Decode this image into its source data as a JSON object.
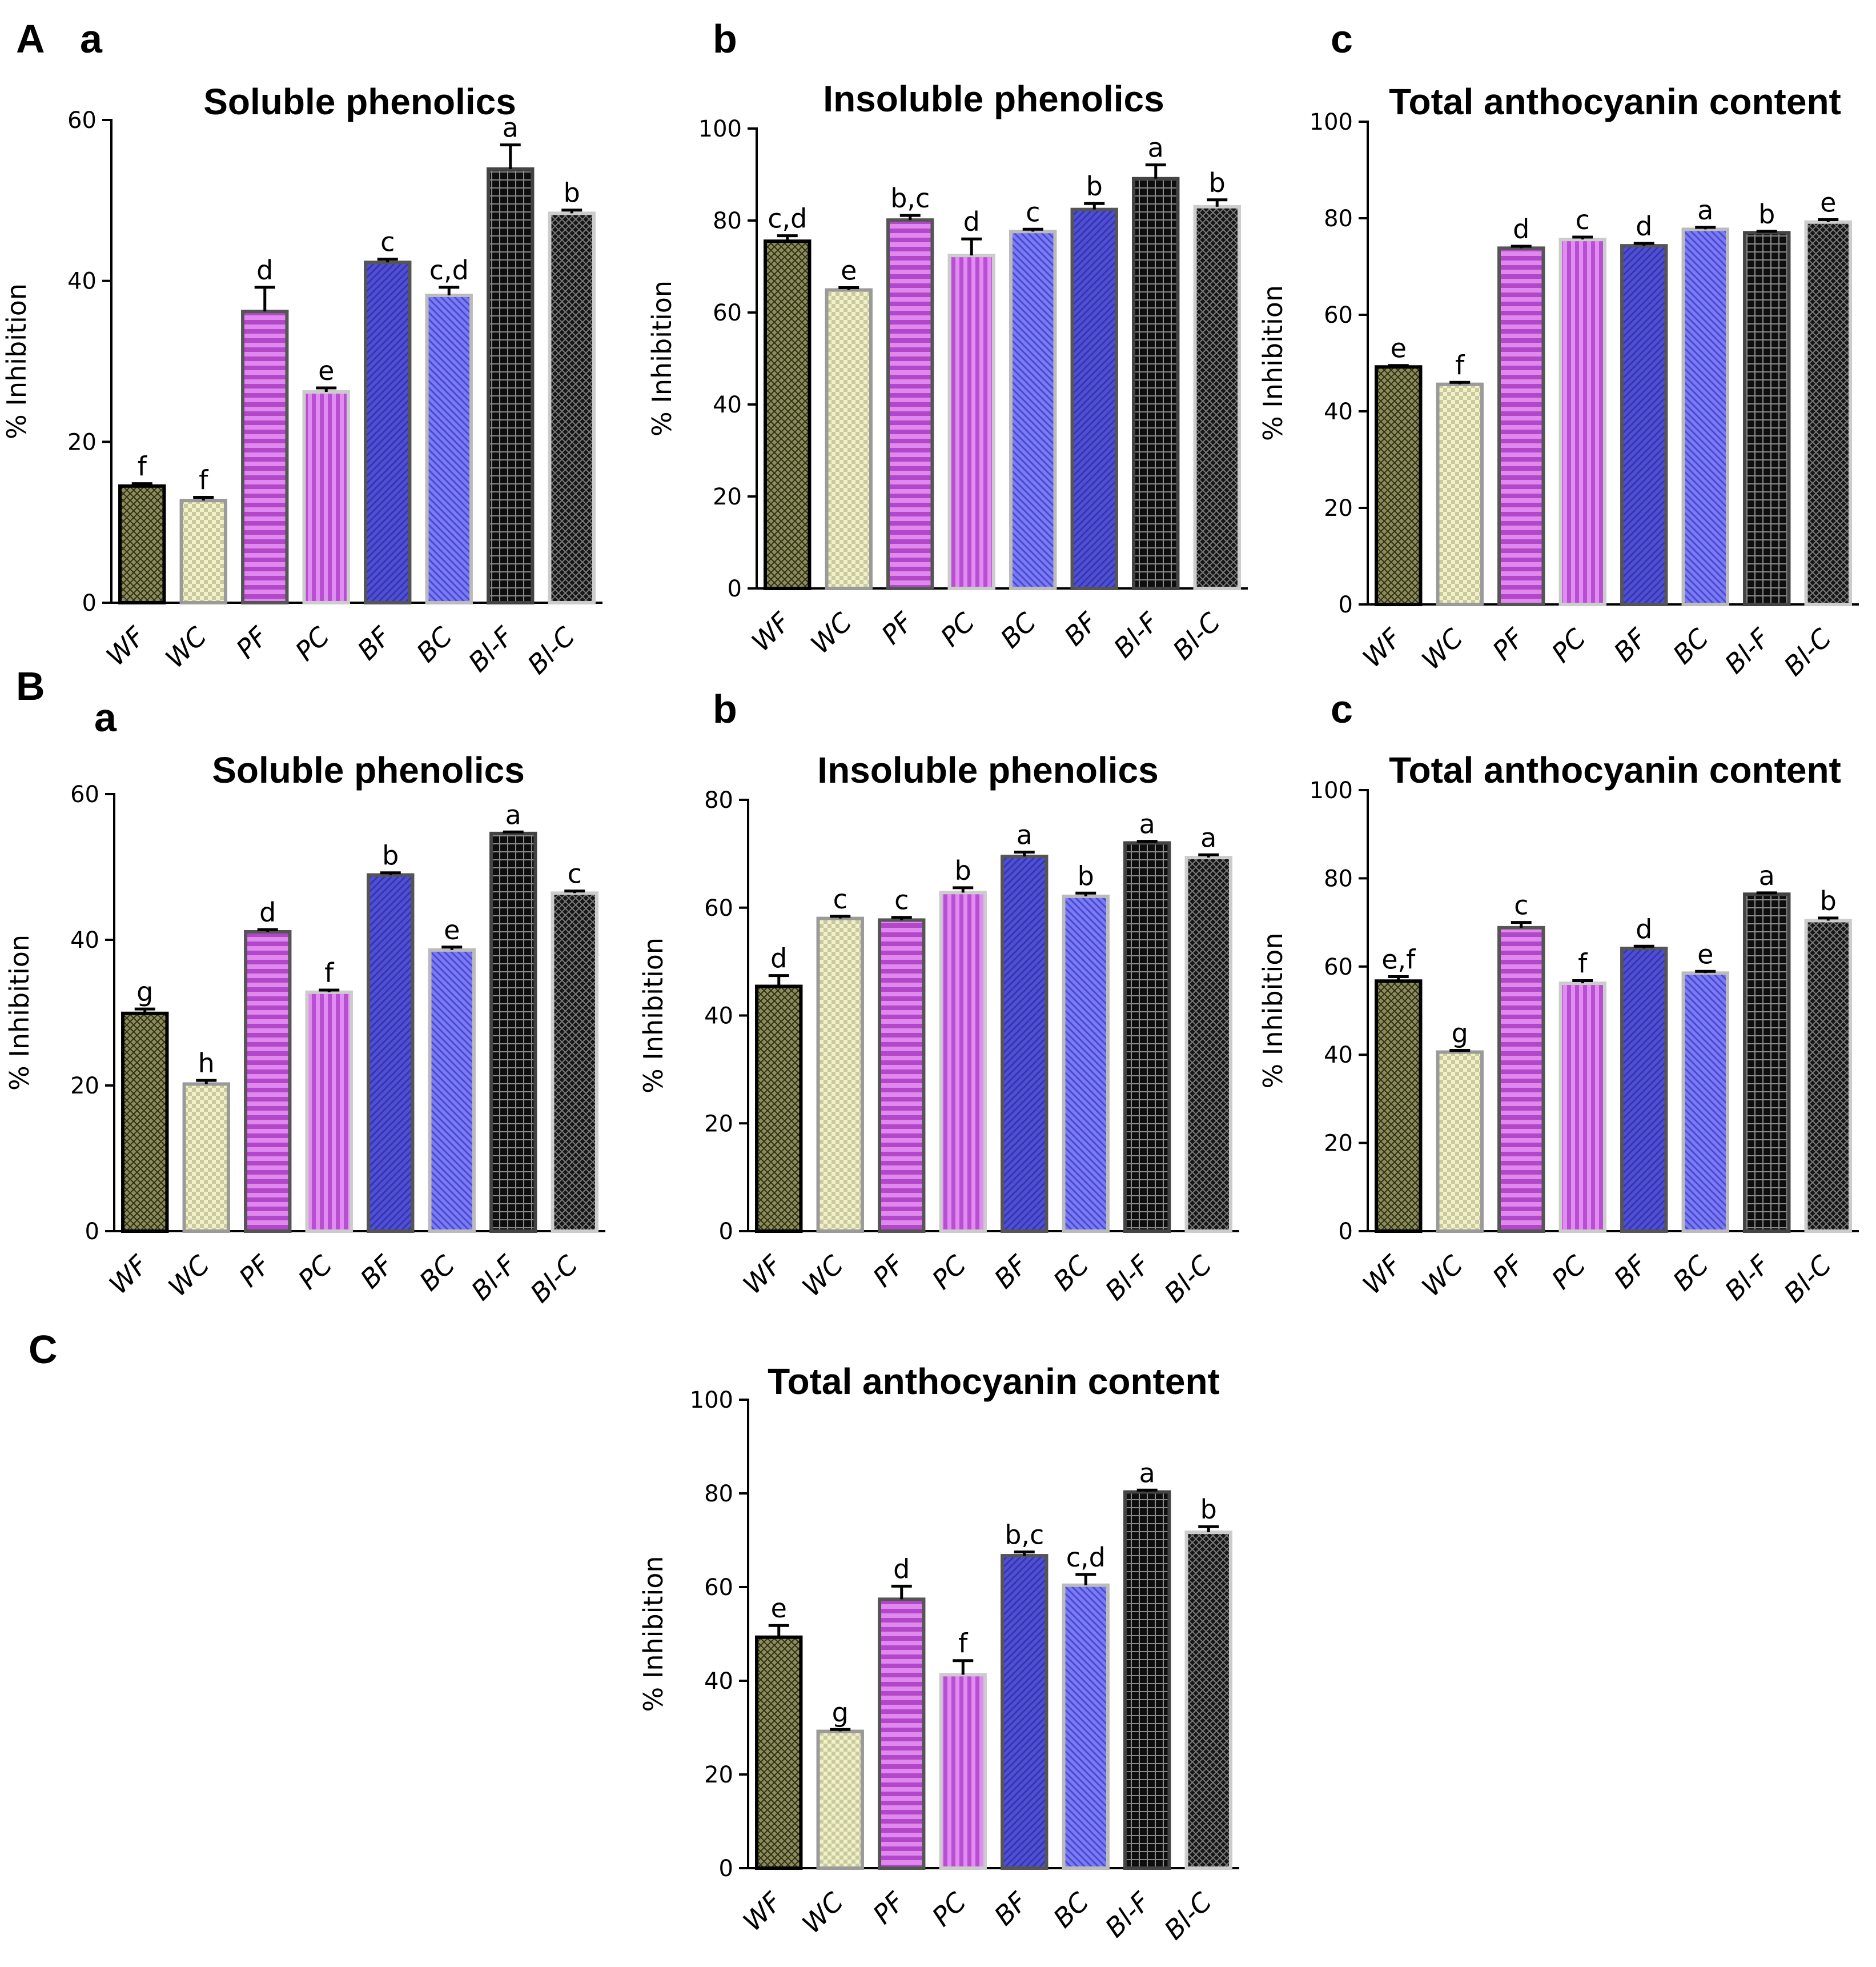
{
  "figure": {
    "sections": [
      {
        "label": "A"
      },
      {
        "label": "B"
      },
      {
        "label": "C"
      }
    ]
  },
  "chart_data": [
    {
      "id": "A-a",
      "section": "A",
      "panel": "a",
      "type": "bar",
      "title": "Soluble phenolics",
      "ylabel": "% Inhibition",
      "xlabel": "",
      "ylim": [
        0,
        60
      ],
      "yticks": [
        0,
        20,
        40,
        60
      ],
      "categories": [
        "WF",
        "WC",
        "PF",
        "PC",
        "BF",
        "BC",
        "Bl-F",
        "Bl-C"
      ],
      "values": [
        14.5,
        12.7,
        36.2,
        26.2,
        42.3,
        38.2,
        53.9,
        48.4
      ],
      "errors": [
        0.3,
        0.4,
        3.0,
        0.5,
        0.4,
        1.0,
        3.0,
        0.4
      ],
      "significance": [
        "f",
        "f",
        "d",
        "e",
        "c",
        "c,d",
        "a",
        "b"
      ]
    },
    {
      "id": "A-b",
      "section": "A",
      "panel": "b",
      "type": "bar",
      "title": "Insoluble phenolics",
      "ylabel": "% Inhibition",
      "xlabel": "",
      "ylim": [
        0,
        100
      ],
      "yticks": [
        0,
        20,
        40,
        60,
        80,
        100
      ],
      "categories": [
        "WF",
        "WC",
        "PF",
        "PC",
        "BC",
        "BF",
        "Bl-F",
        "Bl-C"
      ],
      "values": [
        75.5,
        64.9,
        80.1,
        72.4,
        77.6,
        82.4,
        89.1,
        83.0
      ],
      "errors": [
        1.2,
        0.5,
        1.0,
        3.6,
        0.5,
        1.3,
        3.0,
        1.5
      ],
      "significance": [
        "c,d",
        "e",
        "b,c",
        "d",
        "c",
        "b",
        "a",
        "b"
      ]
    },
    {
      "id": "A-c",
      "section": "A",
      "panel": "c",
      "type": "bar",
      "title": "Total anthocyanin content",
      "ylabel": "% Inhibition",
      "xlabel": "",
      "ylim": [
        0,
        100
      ],
      "yticks": [
        0,
        20,
        40,
        60,
        80,
        100
      ],
      "categories": [
        "WF",
        "WC",
        "PF",
        "PC",
        "BF",
        "BC",
        "Bl-F",
        "Bl-C"
      ],
      "values": [
        49.2,
        45.6,
        73.8,
        75.6,
        74.3,
        77.7,
        77.0,
        79.2
      ],
      "errors": [
        0.3,
        0.4,
        0.4,
        0.5,
        0.5,
        0.4,
        0.3,
        0.5
      ],
      "significance": [
        "e",
        "f",
        "d",
        "c",
        "d",
        "a",
        "b",
        "e"
      ]
    },
    {
      "id": "B-a",
      "section": "B",
      "panel": "a",
      "type": "bar",
      "title": "Soluble phenolics",
      "ylabel": "% Inhibition",
      "xlabel": "",
      "ylim": [
        0,
        60
      ],
      "yticks": [
        0,
        20,
        40,
        60
      ],
      "categories": [
        "WF",
        "WC",
        "PF",
        "PC",
        "BF",
        "BC",
        "Bl-F",
        "Bl-C"
      ],
      "values": [
        29.9,
        20.2,
        41.1,
        32.8,
        48.9,
        38.6,
        54.6,
        46.4
      ],
      "errors": [
        0.6,
        0.5,
        0.3,
        0.3,
        0.3,
        0.4,
        0.2,
        0.3
      ],
      "significance": [
        "g",
        "h",
        "d",
        "f",
        "b",
        "e",
        "a",
        "c"
      ]
    },
    {
      "id": "B-b",
      "section": "B",
      "panel": "b",
      "type": "bar",
      "title": "Insoluble phenolics",
      "ylabel": "% Inhibition",
      "xlabel": "",
      "ylim": [
        0,
        80
      ],
      "yticks": [
        0,
        20,
        40,
        60,
        80
      ],
      "categories": [
        "WF",
        "WC",
        "PF",
        "PC",
        "BF",
        "BC",
        "Bl-F",
        "Bl-C"
      ],
      "values": [
        45.4,
        58.0,
        57.7,
        62.8,
        69.5,
        62.1,
        72.0,
        69.3
      ],
      "errors": [
        2.0,
        0.4,
        0.5,
        0.9,
        0.8,
        0.6,
        0.3,
        0.5
      ],
      "significance": [
        "d",
        "c",
        "c",
        "b",
        "a",
        "b",
        "a",
        "a"
      ]
    },
    {
      "id": "B-c",
      "section": "B",
      "panel": "c",
      "type": "bar",
      "title": "Total anthocyanin content",
      "ylabel": "% Inhibition",
      "xlabel": "",
      "ylim": [
        0,
        100
      ],
      "yticks": [
        0,
        20,
        40,
        60,
        80,
        100
      ],
      "categories": [
        "WF",
        "WC",
        "PF",
        "PC",
        "BF",
        "BC",
        "Bl-F",
        "Bl-C"
      ],
      "values": [
        56.7,
        40.6,
        68.8,
        56.2,
        64.1,
        58.5,
        76.4,
        70.4
      ],
      "errors": [
        1.0,
        0.4,
        1.2,
        0.6,
        0.5,
        0.4,
        0.3,
        0.6
      ],
      "significance": [
        "e,f",
        "g",
        "c",
        "f",
        "d",
        "e",
        "a",
        "b"
      ]
    },
    {
      "id": "C",
      "section": "C",
      "panel": "",
      "type": "bar",
      "title": "Total anthocyanin content",
      "ylabel": "% Inhibition",
      "xlabel": "",
      "ylim": [
        0,
        100
      ],
      "yticks": [
        0,
        20,
        40,
        60,
        80,
        100
      ],
      "categories": [
        "WF",
        "WC",
        "PF",
        "PC",
        "BF",
        "BC",
        "Bl-F",
        "Bl-C"
      ],
      "values": [
        49.3,
        29.2,
        57.4,
        41.3,
        66.7,
        60.4,
        80.3,
        71.7
      ],
      "errors": [
        2.5,
        0.4,
        2.8,
        3.0,
        0.8,
        2.3,
        0.4,
        1.2
      ],
      "significance": [
        "e",
        "g",
        "d",
        "f",
        "b,c",
        "c,d",
        "a",
        "b"
      ]
    }
  ],
  "series_styles": {
    "WF": {
      "fill": "#8c8c5c",
      "pattern": "crosshatch",
      "border": "#000000"
    },
    "WC": {
      "fill": "#e7e7b9",
      "pattern": "checker",
      "border": "#9a9a9a"
    },
    "PF": {
      "fill": "#b347c9",
      "pattern": "hlines",
      "border": "#555555"
    },
    "PC": {
      "fill": "#c24fd8",
      "pattern": "vlines",
      "border": "#cccccc"
    },
    "BF": {
      "fill": "#4f4fd9",
      "pattern": "diag",
      "border": "#555555"
    },
    "BC": {
      "fill": "#6c6cf0",
      "pattern": "diag2",
      "border": "#bbbbbb"
    },
    "Bl-F": {
      "fill": "#111111",
      "pattern": "grid",
      "border": "#444444"
    },
    "Bl-C": {
      "fill": "#1a1a1a",
      "pattern": "checker-dark",
      "border": "#cccccc"
    }
  }
}
